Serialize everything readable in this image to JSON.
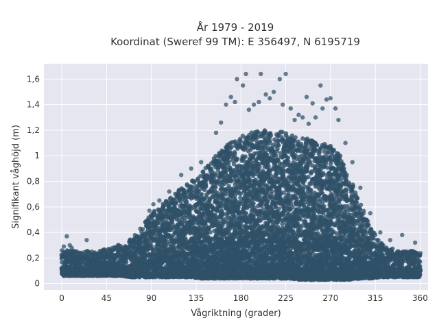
{
  "chart_data": {
    "type": "scatter",
    "title_line1": "År 1979 - 2019",
    "title_line2": "Koordinat (Sweref 99 TM): E 356497, N 6195719",
    "xlabel": "Vågriktning (grader)",
    "ylabel": "Signifikant våghöjd (m)",
    "xlim": [
      -18,
      368
    ],
    "ylim": [
      -0.05,
      1.72
    ],
    "x_ticks": [
      0,
      45,
      90,
      135,
      180,
      225,
      270,
      315,
      360
    ],
    "x_tick_labels": [
      "0",
      "45",
      "90",
      "135",
      "180",
      "225",
      "270",
      "315",
      "360"
    ],
    "y_ticks": [
      0,
      0.2,
      0.4,
      0.6,
      0.8,
      1.0,
      1.2,
      1.4,
      1.6
    ],
    "y_tick_labels": [
      "0",
      "0,2",
      "0,4",
      "0,6",
      "0,8",
      "1",
      "1,2",
      "1,4",
      "1,6"
    ],
    "grid": true,
    "colors": {
      "marker": "#2f5168",
      "plot_bg": "#e5e6f0",
      "grid": "#ffffff"
    },
    "point_cloud_envelope": {
      "x": [
        0,
        10,
        20,
        30,
        40,
        50,
        60,
        70,
        80,
        90,
        100,
        110,
        120,
        130,
        140,
        150,
        160,
        170,
        180,
        190,
        200,
        210,
        220,
        230,
        240,
        250,
        260,
        270,
        280,
        290,
        300,
        310,
        320,
        330,
        340,
        350,
        360
      ],
      "y_min": [
        0.06,
        0.06,
        0.06,
        0.06,
        0.06,
        0.06,
        0.06,
        0.05,
        0.05,
        0.05,
        0.05,
        0.05,
        0.05,
        0.05,
        0.04,
        0.04,
        0.04,
        0.04,
        0.04,
        0.04,
        0.04,
        0.04,
        0.04,
        0.04,
        0.03,
        0.03,
        0.03,
        0.03,
        0.03,
        0.03,
        0.04,
        0.04,
        0.05,
        0.05,
        0.05,
        0.05,
        0.05
      ],
      "y_max": [
        0.26,
        0.26,
        0.25,
        0.26,
        0.27,
        0.29,
        0.31,
        0.35,
        0.44,
        0.55,
        0.62,
        0.68,
        0.75,
        0.8,
        0.86,
        0.95,
        1.05,
        1.12,
        1.15,
        1.18,
        1.2,
        1.2,
        1.2,
        1.18,
        1.15,
        1.13,
        1.1,
        1.08,
        1.0,
        0.82,
        0.62,
        0.45,
        0.33,
        0.28,
        0.26,
        0.26,
        0.24
      ]
    },
    "outliers": [
      {
        "x": 2,
        "y": 0.29
      },
      {
        "x": 5,
        "y": 0.37
      },
      {
        "x": 8,
        "y": 0.3
      },
      {
        "x": 25,
        "y": 0.34
      },
      {
        "x": 10,
        "y": 0.28
      },
      {
        "x": 185,
        "y": 1.64
      },
      {
        "x": 176,
        "y": 1.6
      },
      {
        "x": 182,
        "y": 1.55
      },
      {
        "x": 170,
        "y": 1.46
      },
      {
        "x": 165,
        "y": 1.4
      },
      {
        "x": 174,
        "y": 1.42
      },
      {
        "x": 200,
        "y": 1.64
      },
      {
        "x": 219,
        "y": 1.6
      },
      {
        "x": 225,
        "y": 1.64
      },
      {
        "x": 213,
        "y": 1.5
      },
      {
        "x": 205,
        "y": 1.48
      },
      {
        "x": 198,
        "y": 1.42
      },
      {
        "x": 209,
        "y": 1.45
      },
      {
        "x": 222,
        "y": 1.4
      },
      {
        "x": 230,
        "y": 1.37
      },
      {
        "x": 238,
        "y": 1.32
      },
      {
        "x": 246,
        "y": 1.46
      },
      {
        "x": 252,
        "y": 1.41
      },
      {
        "x": 260,
        "y": 1.55
      },
      {
        "x": 270,
        "y": 1.45
      },
      {
        "x": 266,
        "y": 1.44
      },
      {
        "x": 275,
        "y": 1.37
      },
      {
        "x": 262,
        "y": 1.37
      },
      {
        "x": 278,
        "y": 1.28
      },
      {
        "x": 248,
        "y": 1.25
      },
      {
        "x": 242,
        "y": 1.3
      },
      {
        "x": 188,
        "y": 1.36
      },
      {
        "x": 193,
        "y": 1.4
      },
      {
        "x": 160,
        "y": 1.26
      },
      {
        "x": 155,
        "y": 1.18
      },
      {
        "x": 234,
        "y": 1.28
      },
      {
        "x": 255,
        "y": 1.3
      },
      {
        "x": 285,
        "y": 1.1
      },
      {
        "x": 292,
        "y": 0.95
      },
      {
        "x": 300,
        "y": 0.75
      },
      {
        "x": 310,
        "y": 0.55
      },
      {
        "x": 320,
        "y": 0.4
      },
      {
        "x": 342,
        "y": 0.38
      },
      {
        "x": 355,
        "y": 0.32
      },
      {
        "x": 330,
        "y": 0.34
      },
      {
        "x": 108,
        "y": 0.72
      },
      {
        "x": 120,
        "y": 0.85
      },
      {
        "x": 130,
        "y": 0.9
      },
      {
        "x": 140,
        "y": 0.95
      },
      {
        "x": 98,
        "y": 0.65
      },
      {
        "x": 88,
        "y": 0.57
      },
      {
        "x": 92,
        "y": 0.62
      }
    ]
  }
}
